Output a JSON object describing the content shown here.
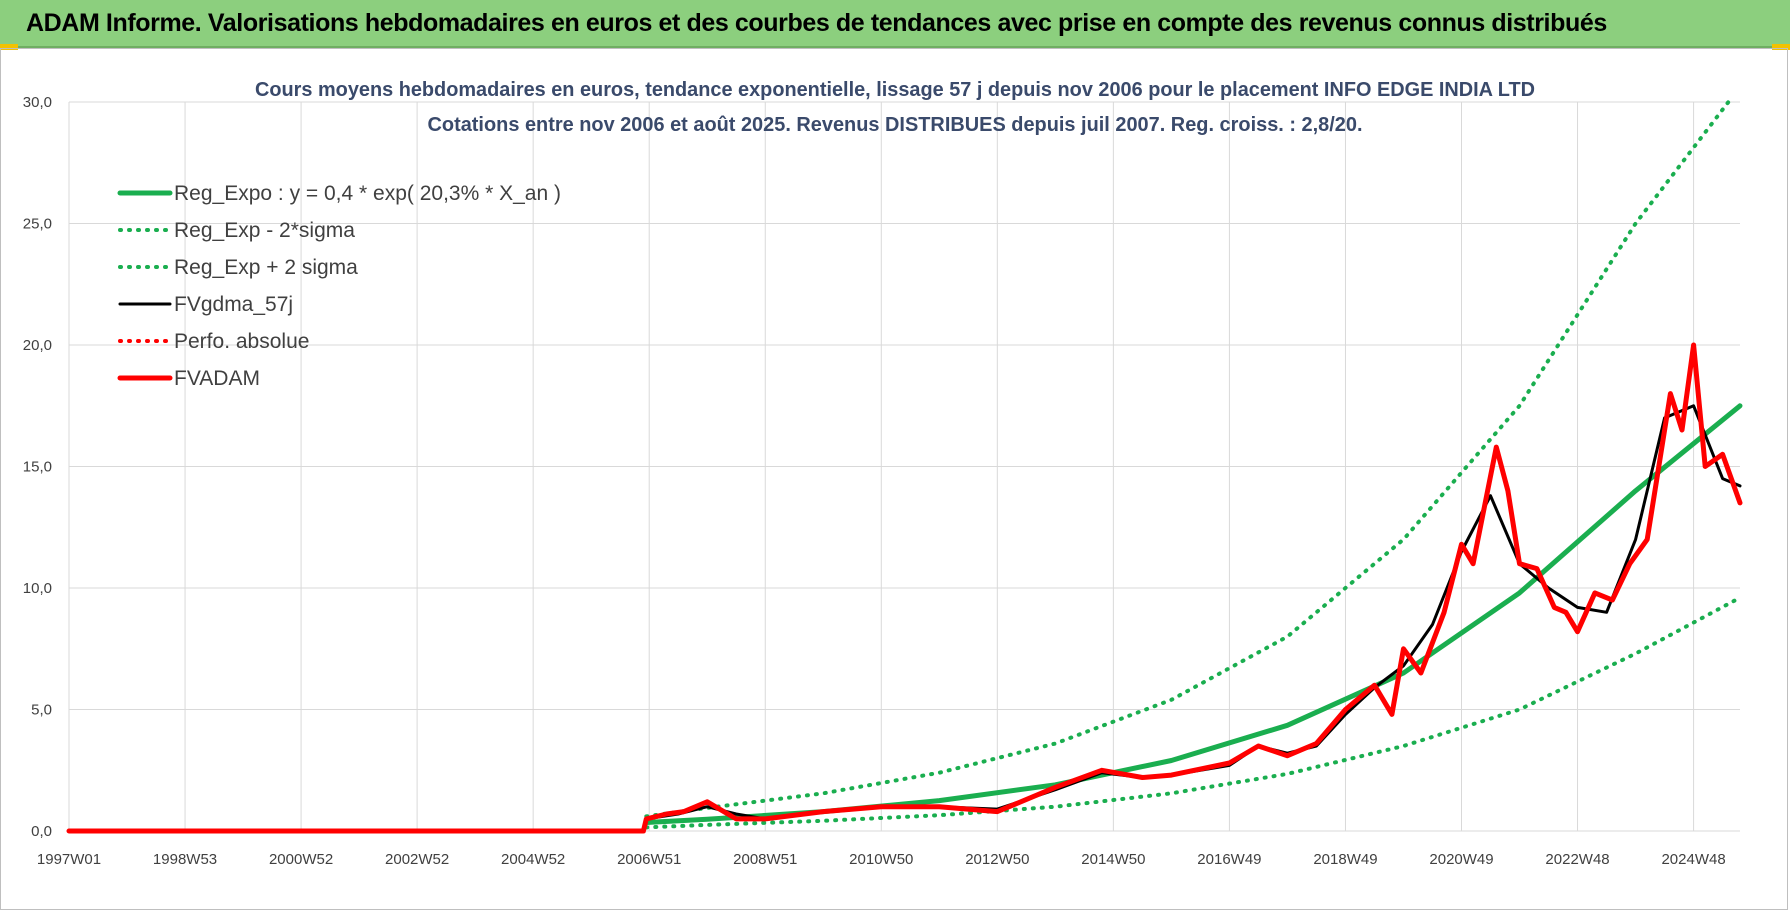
{
  "banner": {
    "title": "ADAM Informe. Valorisations hebdomadaires en euros et des courbes de tendances avec prise en compte des revenus connus distribués"
  },
  "colors": {
    "banner_bg": "#8ccf7e",
    "trend_green": "#1aae4f",
    "fv_black": "#000000",
    "fvadam_red": "#ff0000",
    "grid": "#d9d9d9"
  },
  "chart_data": {
    "type": "line",
    "title": [
      "Cours moyens hebdomadaires en euros, tendance exponentielle, lissage 57 j depuis nov 2006  pour le placement INFO EDGE INDIA LTD",
      "Cotations entre nov 2006 et août 2025. Revenus DISTRIBUES depuis juil 2007. Reg. croiss. : 2,8/20."
    ],
    "xlabel": "",
    "ylabel": "",
    "x_ticks": [
      "1997W01",
      "1998W53",
      "2000W52",
      "2002W52",
      "2004W52",
      "2006W51",
      "2008W51",
      "2010W50",
      "2012W50",
      "2014W50",
      "2016W49",
      "2018W49",
      "2020W49",
      "2022W48",
      "2024W48"
    ],
    "x_tick_years": [
      1997.0,
      1999.0,
      2001.0,
      2003.0,
      2005.0,
      2007.0,
      2009.0,
      2011.0,
      2013.0,
      2015.0,
      2017.0,
      2019.0,
      2021.0,
      2023.0,
      2025.0
    ],
    "xlim": [
      1997.0,
      2025.8
    ],
    "y_ticks": [
      "0,0",
      "5,0",
      "10,0",
      "15,0",
      "20,0",
      "25,0",
      "30,0"
    ],
    "ylim": [
      0,
      30
    ],
    "grid": true,
    "legend_position": "top-left",
    "series": [
      {
        "name": "Reg_Expo : y = 0,4 * exp( 20,3% *  X_an )",
        "color": "#1aae4f",
        "style": "solid-thick",
        "x": [
          2006.95,
          2008,
          2010,
          2012,
          2014,
          2016,
          2018,
          2020,
          2022,
          2024,
          2025.8
        ],
        "y": [
          0.35,
          0.48,
          0.8,
          1.25,
          1.9,
          2.9,
          4.35,
          6.5,
          9.8,
          14.0,
          17.5
        ]
      },
      {
        "name": "Reg_Exp - 2*sigma",
        "color": "#1aae4f",
        "style": "dotted",
        "x": [
          2006.95,
          2008,
          2010,
          2012,
          2014,
          2016,
          2018,
          2020,
          2022,
          2024,
          2025.8
        ],
        "y": [
          0.15,
          0.25,
          0.42,
          0.65,
          1.0,
          1.55,
          2.35,
          3.5,
          5.0,
          7.3,
          9.6
        ]
      },
      {
        "name": "Reg_Exp + 2 sigma",
        "color": "#1aae4f",
        "style": "dotted",
        "x": [
          2006.95,
          2008,
          2010,
          2012,
          2014,
          2016,
          2018,
          2020,
          2022,
          2024,
          2025.6
        ],
        "y": [
          0.6,
          0.95,
          1.55,
          2.4,
          3.6,
          5.4,
          8.0,
          12.0,
          17.5,
          25.0,
          30.0
        ]
      },
      {
        "name": "FVgdma_57j",
        "color": "#000000",
        "style": "solid",
        "x": [
          1997.0,
          2006.9,
          2006.95,
          2007.5,
          2008.0,
          2008.5,
          2009.0,
          2010.0,
          2011.0,
          2012.0,
          2013.0,
          2014.0,
          2014.8,
          2015.5,
          2016.0,
          2017.0,
          2017.5,
          2018.0,
          2018.5,
          2019.0,
          2019.5,
          2020.0,
          2020.5,
          2021.0,
          2021.5,
          2022.0,
          2022.5,
          2023.0,
          2023.5,
          2024.0,
          2024.5,
          2025.0,
          2025.5,
          2025.8
        ],
        "y": [
          0,
          0,
          0.5,
          0.7,
          1.0,
          0.7,
          0.5,
          0.8,
          1.0,
          1.0,
          0.9,
          1.7,
          2.4,
          2.2,
          2.3,
          2.7,
          3.5,
          3.2,
          3.5,
          4.8,
          5.9,
          6.8,
          8.5,
          11.5,
          13.8,
          11.0,
          10.0,
          9.2,
          9.0,
          12.0,
          17.0,
          17.5,
          14.5,
          14.2
        ]
      },
      {
        "name": "Perfo. absolue",
        "color": "#ff0000",
        "style": "dotted",
        "x": [
          1997.0,
          2006.9
        ],
        "y": [
          0,
          0
        ]
      },
      {
        "name": "FVADAM",
        "color": "#ff0000",
        "style": "solid-thick",
        "x": [
          1997.0,
          2006.9,
          2006.95,
          2007.3,
          2007.6,
          2008.0,
          2008.5,
          2009.0,
          2010.0,
          2011.0,
          2012.0,
          2013.0,
          2014.0,
          2014.8,
          2015.5,
          2016.0,
          2017.0,
          2017.5,
          2018.0,
          2018.5,
          2019.0,
          2019.5,
          2019.8,
          2020.0,
          2020.3,
          2020.7,
          2021.0,
          2021.2,
          2021.6,
          2021.8,
          2022.0,
          2022.3,
          2022.6,
          2022.8,
          2023.0,
          2023.3,
          2023.6,
          2023.9,
          2024.2,
          2024.6,
          2024.8,
          2025.0,
          2025.2,
          2025.5,
          2025.8
        ],
        "y": [
          0,
          0,
          0.5,
          0.7,
          0.8,
          1.2,
          0.5,
          0.5,
          0.8,
          1.0,
          1.0,
          0.8,
          1.8,
          2.5,
          2.2,
          2.3,
          2.8,
          3.5,
          3.1,
          3.6,
          5.0,
          6.0,
          4.8,
          7.5,
          6.5,
          9.0,
          11.8,
          11.0,
          15.8,
          14.0,
          11.0,
          10.8,
          9.2,
          9.0,
          8.2,
          9.8,
          9.5,
          11.0,
          12.0,
          18.0,
          16.5,
          20.0,
          15.0,
          15.5,
          13.5
        ]
      }
    ]
  }
}
